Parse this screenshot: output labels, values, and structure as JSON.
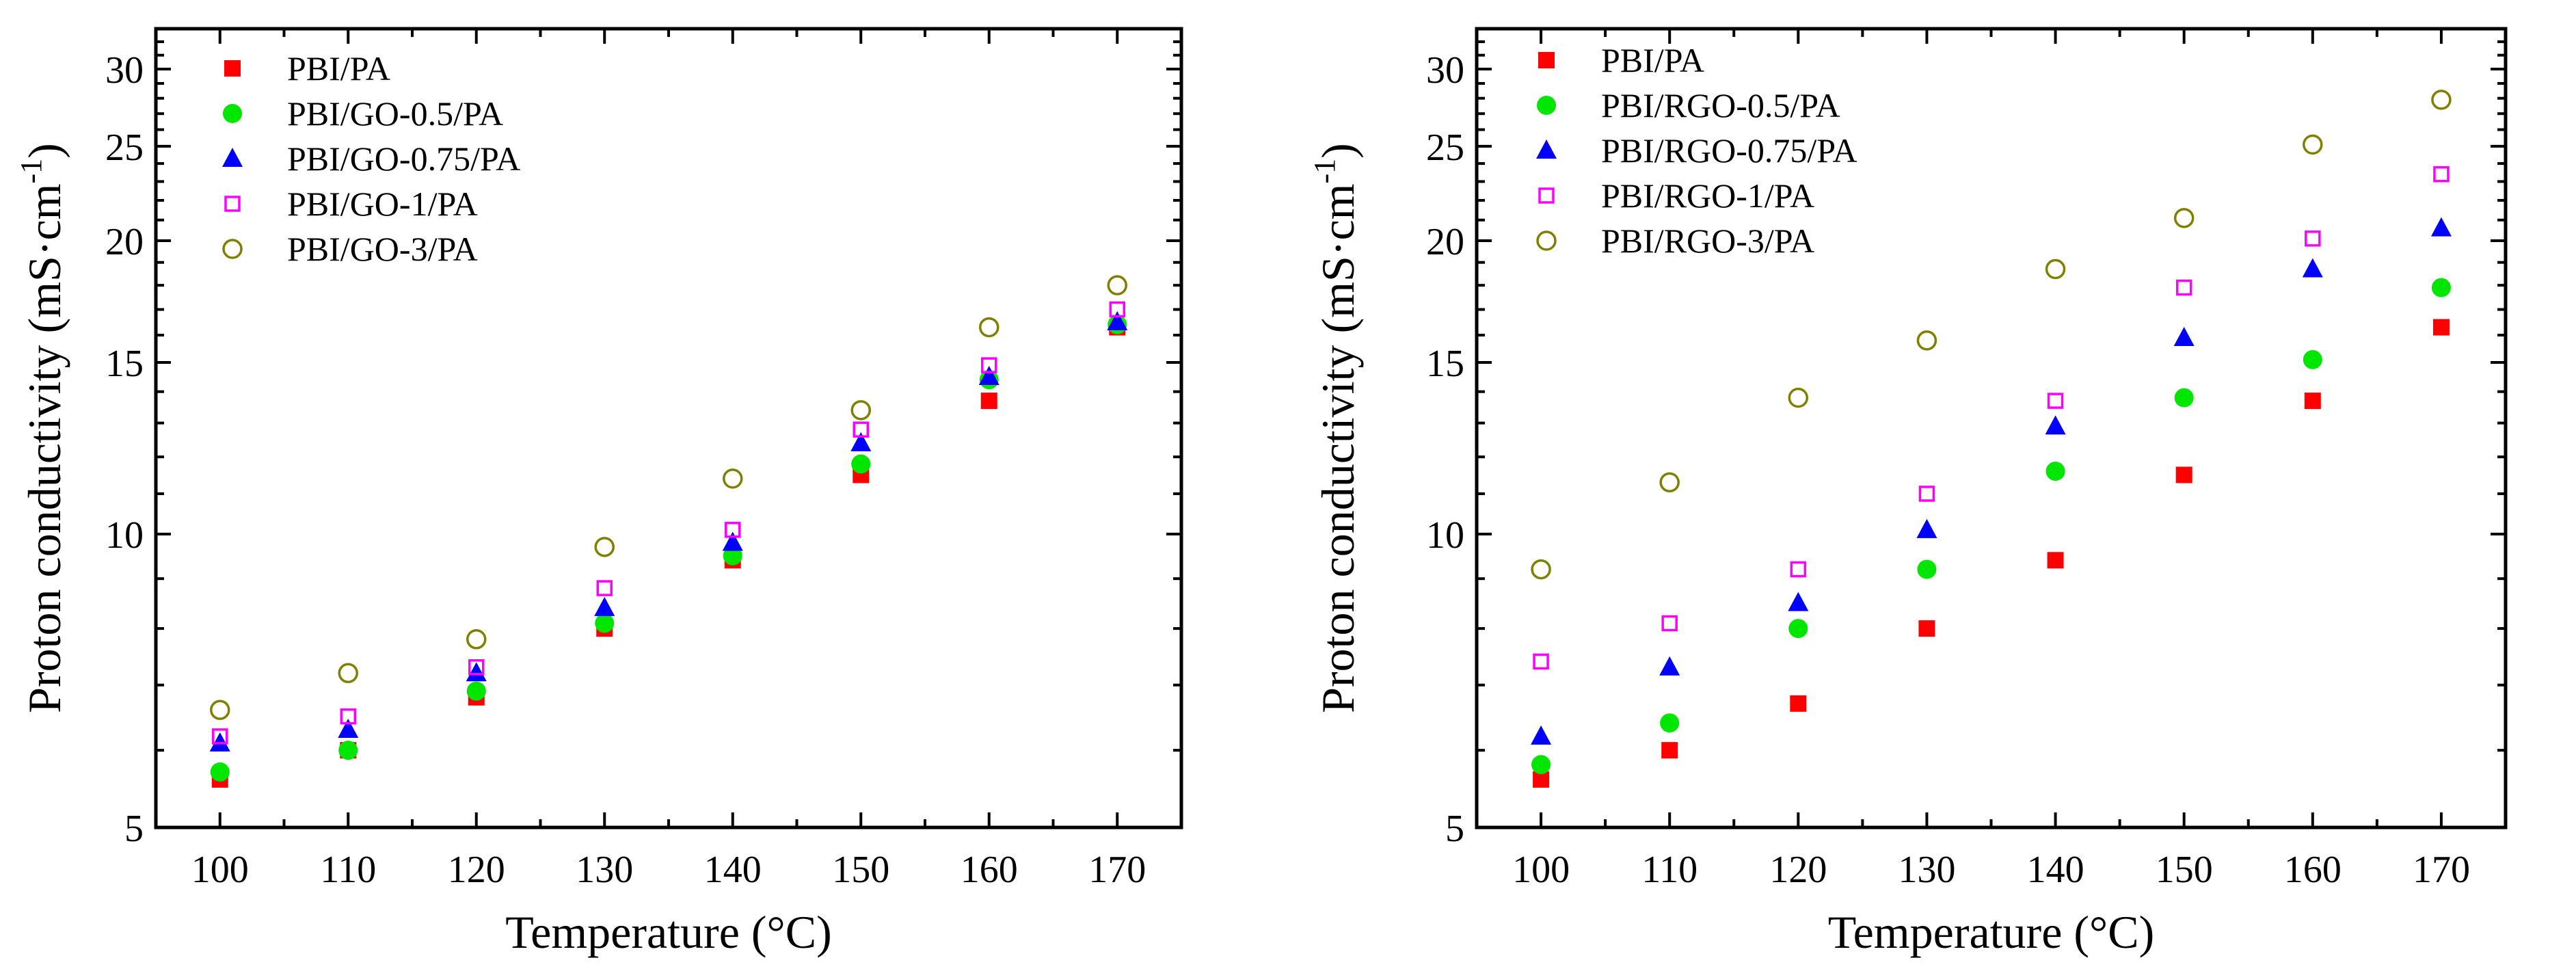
{
  "chart_data": [
    {
      "type": "scatter",
      "title": "",
      "xlabel": "Temperature (°C)",
      "ylabel": "Proton conductivity (mS·cm",
      "ylabel_superscript": "-1",
      "ylabel_suffix": ")",
      "yscale": "log",
      "xlim": [
        95,
        175
      ],
      "ylim": [
        5,
        33
      ],
      "xticks": [
        100,
        110,
        120,
        130,
        140,
        150,
        160,
        170
      ],
      "yticks": [
        5,
        10,
        15,
        20,
        25,
        30
      ],
      "legend_position": "top-left",
      "x": [
        100,
        110,
        120,
        130,
        140,
        150,
        160,
        170
      ],
      "series": [
        {
          "name": "PBI/PA",
          "marker": "square-filled",
          "color": "#ff0000",
          "values": [
            5.6,
            6.0,
            6.8,
            8.0,
            9.4,
            11.5,
            13.7,
            16.3
          ]
        },
        {
          "name": "PBI/GO-0.5/PA",
          "marker": "circle-filled",
          "color": "#00e600",
          "values": [
            5.7,
            6.0,
            6.9,
            8.1,
            9.5,
            11.8,
            14.4,
            16.4
          ]
        },
        {
          "name": "PBI/GO-0.75/PA",
          "marker": "triangle-filled",
          "color": "#0000ff",
          "values": [
            6.1,
            6.3,
            7.2,
            8.4,
            9.8,
            12.4,
            14.5,
            16.5
          ]
        },
        {
          "name": "PBI/GO-1/PA",
          "marker": "square-open",
          "color": "#ff00ff",
          "values": [
            6.2,
            6.5,
            7.3,
            8.8,
            10.1,
            12.8,
            14.9,
            17.0
          ]
        },
        {
          "name": "PBI/GO-3/PA",
          "marker": "circle-open",
          "color": "#808000",
          "values": [
            6.6,
            7.2,
            7.8,
            9.7,
            11.4,
            13.4,
            16.3,
            18.0
          ]
        }
      ]
    },
    {
      "type": "scatter",
      "title": "",
      "xlabel": "Temperature (°C)",
      "ylabel": "Proton conductivity (mS·cm",
      "ylabel_superscript": "-1",
      "ylabel_suffix": ")",
      "yscale": "log",
      "xlim": [
        95,
        175
      ],
      "ylim": [
        5,
        33
      ],
      "xticks": [
        100,
        110,
        120,
        130,
        140,
        150,
        160,
        170
      ],
      "yticks": [
        5,
        10,
        15,
        20,
        25,
        30
      ],
      "legend_position": "top-left",
      "x": [
        100,
        110,
        120,
        130,
        140,
        150,
        160,
        170
      ],
      "series": [
        {
          "name": "PBI/PA",
          "marker": "square-filled",
          "color": "#ff0000",
          "values": [
            5.6,
            6.0,
            6.7,
            8.0,
            9.4,
            11.5,
            13.7,
            16.3
          ]
        },
        {
          "name": "PBI/RGO-0.5/PA",
          "marker": "circle-filled",
          "color": "#00e600",
          "values": [
            5.8,
            6.4,
            8.0,
            9.2,
            11.6,
            13.8,
            15.1,
            17.9
          ]
        },
        {
          "name": "PBI/RGO-0.75/PA",
          "marker": "triangle-filled",
          "color": "#0000ff",
          "values": [
            6.2,
            7.3,
            8.5,
            10.1,
            12.9,
            15.9,
            18.7,
            20.6
          ]
        },
        {
          "name": "PBI/RGO-1/PA",
          "marker": "square-open",
          "color": "#ff00ff",
          "values": [
            7.4,
            8.1,
            9.2,
            11.0,
            13.7,
            17.9,
            20.1,
            23.4
          ]
        },
        {
          "name": "PBI/RGO-3/PA",
          "marker": "circle-open",
          "color": "#808000",
          "values": [
            9.2,
            11.3,
            13.8,
            15.8,
            18.7,
            21.1,
            25.1,
            27.9
          ]
        }
      ]
    }
  ]
}
